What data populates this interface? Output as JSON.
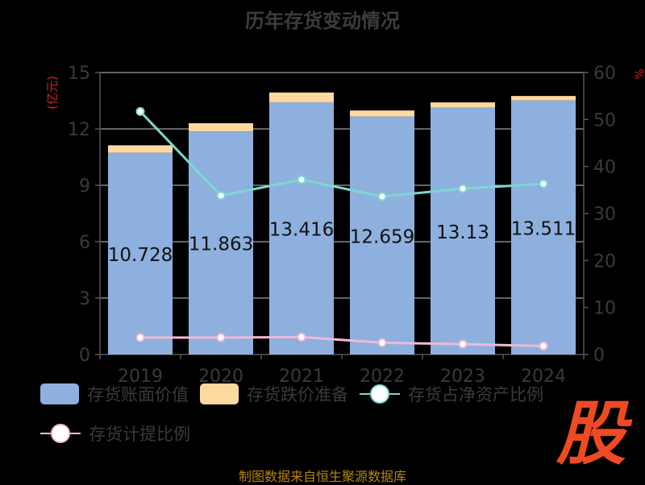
{
  "chart_data": {
    "type": "bar",
    "title": "历年存货变动情况",
    "categories": [
      "2019",
      "2020",
      "2021",
      "2022",
      "2023",
      "2024"
    ],
    "y_left": {
      "label": "(亿元)",
      "ticks": [
        0,
        3,
        6,
        9,
        12,
        15
      ],
      "range": [
        0,
        15
      ]
    },
    "y_right": {
      "label": "%",
      "ticks": [
        0,
        10,
        20,
        30,
        40,
        50,
        60
      ],
      "range": [
        0,
        60
      ]
    },
    "bar_series": [
      {
        "name": "存货账面价值",
        "color": "#8eb0de",
        "values": [
          10.728,
          11.863,
          13.416,
          12.659,
          13.13,
          13.511
        ],
        "labels": [
          "10.728",
          "11.863",
          "13.416",
          "12.659",
          "13.13",
          "13.511"
        ]
      },
      {
        "name": "存货跌价准备",
        "color": "#fdd9a0",
        "values": [
          0.4,
          0.44,
          0.52,
          0.32,
          0.28,
          0.24
        ]
      }
    ],
    "line_series": [
      {
        "name": "存货占净资产比例",
        "color": "#7ed6d2",
        "axis": "right",
        "values": [
          51.7,
          33.8,
          37.2,
          33.6,
          35.3,
          36.3
        ]
      },
      {
        "name": "存货计提比例",
        "color": "#f0b8d8",
        "axis": "right",
        "values": [
          3.6,
          3.6,
          3.7,
          2.5,
          2.2,
          1.8
        ]
      }
    ],
    "grid": true,
    "legend_position": "bottom"
  },
  "footer": "制图数据来自恒生聚源数据库",
  "logo_text": "股"
}
